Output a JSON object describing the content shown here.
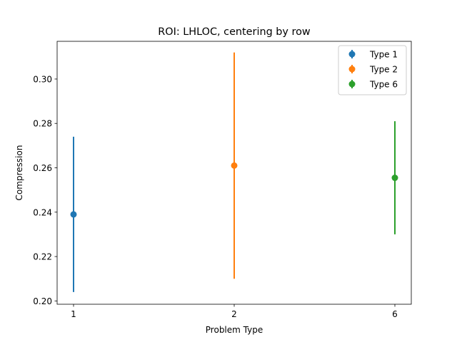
{
  "chart_data": {
    "type": "scatter",
    "title": "ROI: LHLOC, centering by row",
    "xlabel": "Problem Type",
    "ylabel": "Compression",
    "categories": [
      "1",
      "2",
      "6"
    ],
    "ylim": [
      0.1985,
      0.317
    ],
    "yticks": [
      "0.20",
      "0.22",
      "0.24",
      "0.26",
      "0.28",
      "0.30"
    ],
    "grid": false,
    "legend_position": "top-right",
    "series": [
      {
        "name": "Type 1",
        "x": "1",
        "y": 0.239,
        "err_low": 0.204,
        "err_high": 0.274,
        "color": "#1f77b4"
      },
      {
        "name": "Type 2",
        "x": "2",
        "y": 0.261,
        "err_low": 0.21,
        "err_high": 0.312,
        "color": "#ff7f0e"
      },
      {
        "name": "Type 6",
        "x": "6",
        "y": 0.2555,
        "err_low": 0.23,
        "err_high": 0.281,
        "color": "#2ca02c"
      }
    ]
  }
}
